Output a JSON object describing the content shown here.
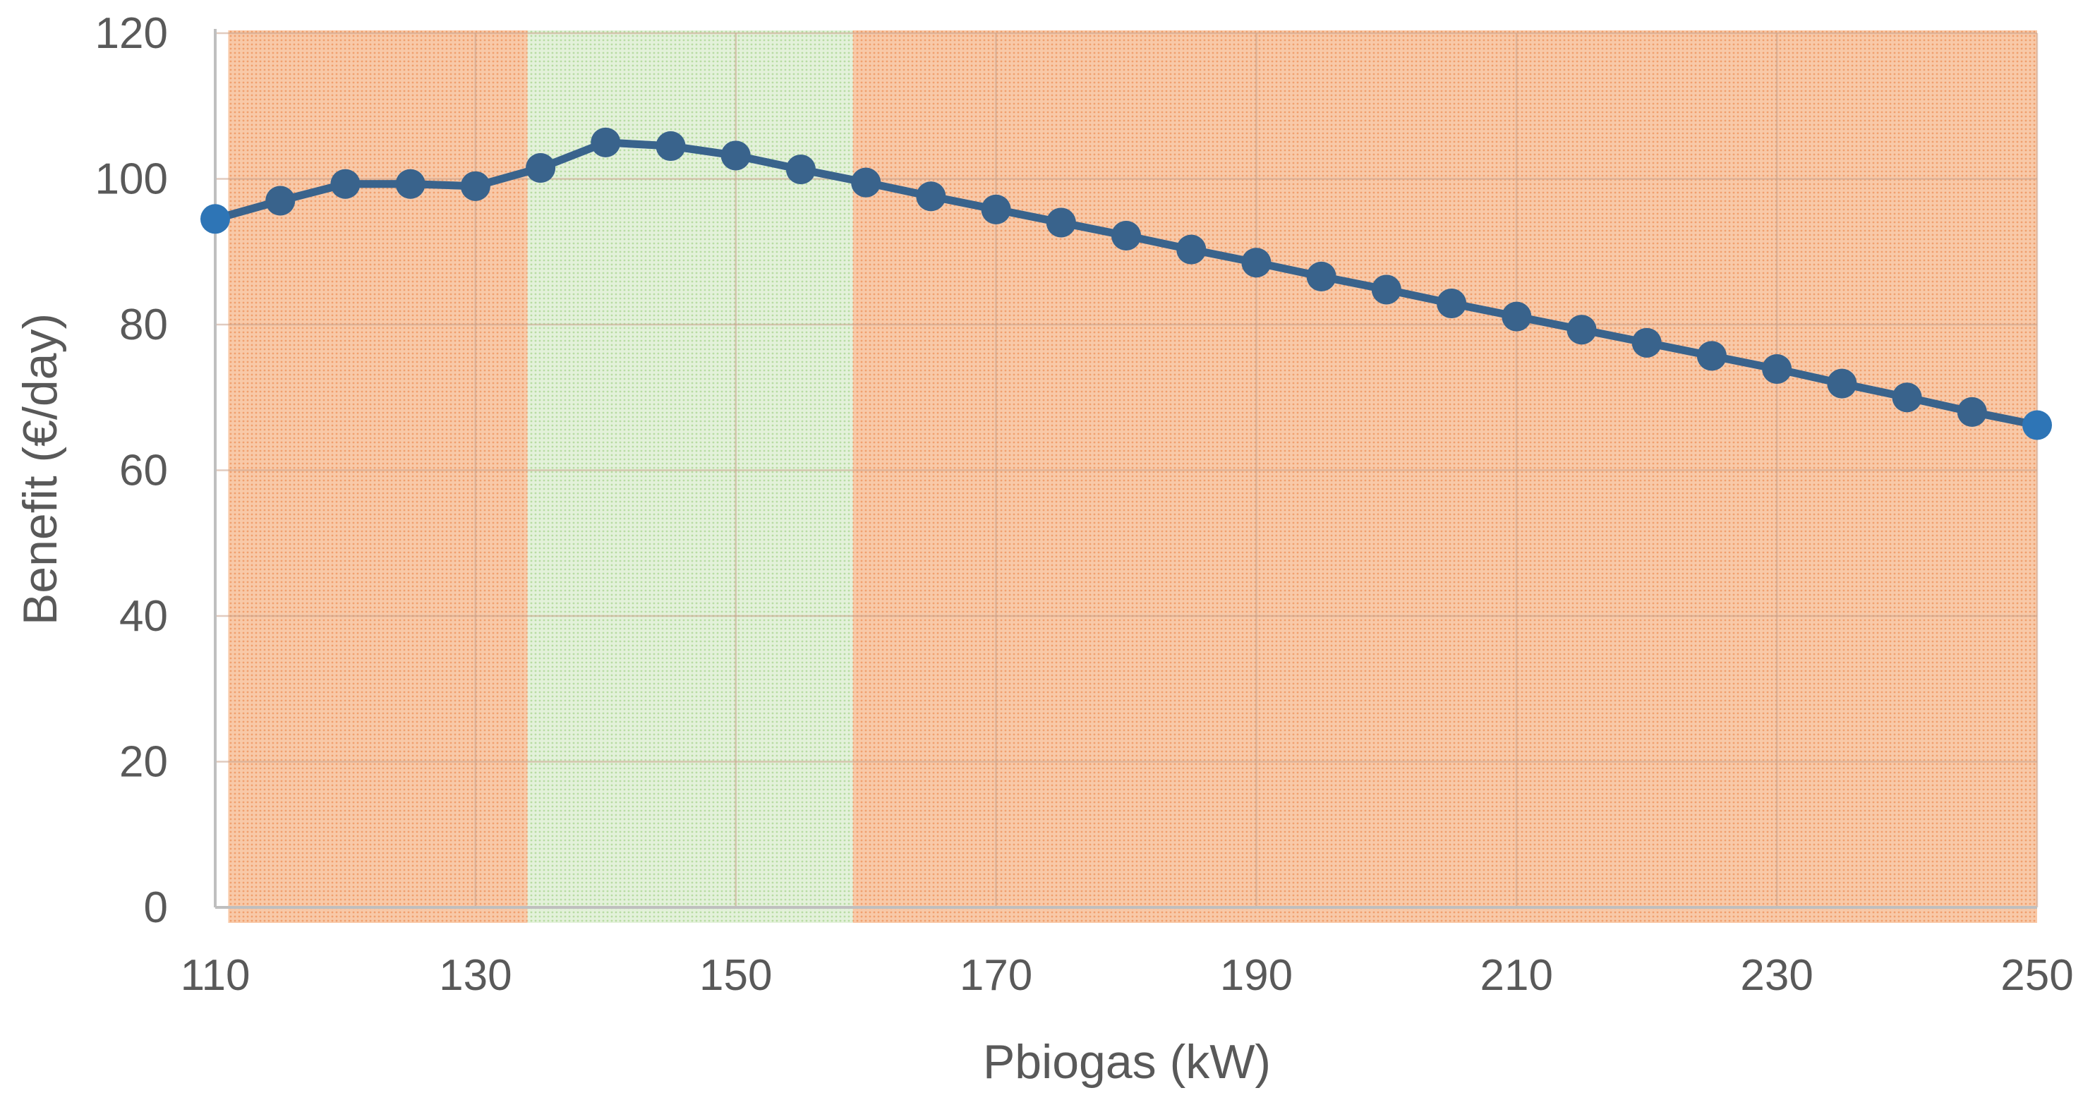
{
  "chart_data": {
    "type": "line",
    "title": "",
    "xlabel": "Pbiogas (kW)",
    "ylabel": "Benefit (€/day)",
    "xlim": [
      110,
      250
    ],
    "ylim": [
      0,
      120
    ],
    "x_ticks": [
      110,
      130,
      150,
      170,
      190,
      210,
      230,
      250
    ],
    "y_ticks": [
      0,
      20,
      40,
      60,
      80,
      100,
      120
    ],
    "grid": true,
    "legend": "none",
    "x": [
      110,
      115,
      120,
      125,
      130,
      135,
      140,
      145,
      150,
      155,
      160,
      165,
      170,
      175,
      180,
      185,
      190,
      195,
      200,
      205,
      210,
      215,
      220,
      225,
      230,
      235,
      240,
      245,
      250
    ],
    "series": [
      {
        "values": [
          94.5,
          97.0,
          99.3,
          99.3,
          99.0,
          101.5,
          105.0,
          104.5,
          103.2,
          101.3,
          99.5,
          97.6,
          95.8,
          94.0,
          92.2,
          90.3,
          88.5,
          86.6,
          84.8,
          82.9,
          81.1,
          79.3,
          77.5,
          75.7,
          73.9,
          71.9,
          70.0,
          68.0,
          66.2
        ],
        "color": "#2E75B6",
        "marker_color": "#2E75B6"
      }
    ],
    "regions": [
      {
        "from": 111,
        "to": 134,
        "color": "#F4B183",
        "label": ""
      },
      {
        "from": 134,
        "to": 159,
        "color": "#C5E0B4",
        "label": ""
      },
      {
        "from": 159,
        "to": 250,
        "color": "#F4B183",
        "label": ""
      }
    ],
    "colors": {
      "axis": "#BFBFBF",
      "grid": "#C9A08A",
      "text": "#595959",
      "line_overlay": "#44546A"
    }
  }
}
